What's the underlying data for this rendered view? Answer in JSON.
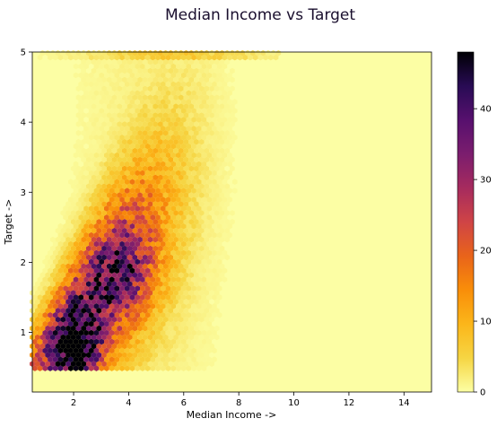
{
  "chart_data": {
    "type": "heatmap",
    "subtype": "hexbin",
    "title": "Median Income vs Target",
    "xlabel": "Median Income  ->",
    "ylabel": "Target  ->",
    "xlim": [
      0.5,
      15.0
    ],
    "ylim": [
      0.15,
      5.0
    ],
    "xticks": [
      "2",
      "4",
      "6",
      "8",
      "10",
      "12",
      "14"
    ],
    "xtick_values": [
      2,
      4,
      6,
      8,
      10,
      12,
      14
    ],
    "yticks": [
      "1",
      "2",
      "3",
      "4",
      "5"
    ],
    "ytick_values": [
      1,
      2,
      3,
      4,
      5
    ],
    "colorbar": {
      "cmap": "inferno_r",
      "min": 0,
      "max": 48,
      "ticks": [
        "0",
        "10",
        "20",
        "30",
        "40"
      ],
      "tick_values": [
        0,
        10,
        20,
        30,
        40
      ]
    },
    "density_hotspot": {
      "x": 2.1,
      "y": 0.75,
      "max_count": 48
    },
    "grid": false,
    "legend": "none"
  }
}
